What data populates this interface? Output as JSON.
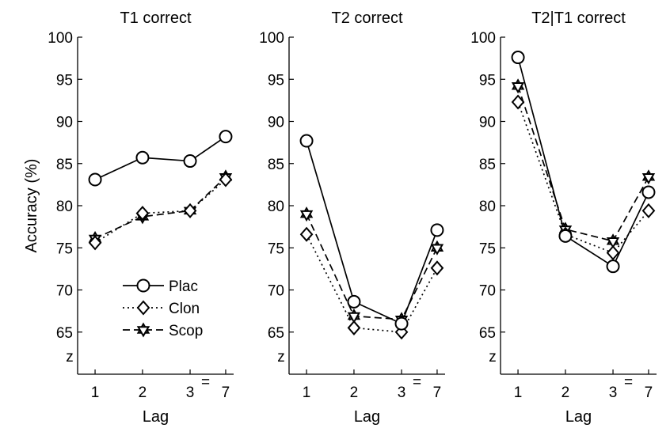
{
  "chart_data": [
    {
      "type": "line",
      "title": "T1 correct",
      "xlabel": "Lag",
      "ylabel": "Accuracy (%)",
      "categories": [
        "1",
        "2",
        "3",
        "7"
      ],
      "ylim": [
        60,
        100
      ],
      "yticks": [
        65,
        70,
        75,
        80,
        85,
        90,
        95,
        100
      ],
      "legend": {
        "placement": "bottom-right",
        "entries": [
          "Plac",
          "Clon",
          "Scop"
        ]
      },
      "series": [
        {
          "name": "Plac",
          "values": [
            83.1,
            85.7,
            85.3,
            88.2
          ]
        },
        {
          "name": "Clon",
          "values": [
            75.6,
            79.1,
            79.4,
            83.1
          ]
        },
        {
          "name": "Scop",
          "values": [
            76.1,
            78.7,
            79.4,
            83.4
          ]
        }
      ]
    },
    {
      "type": "line",
      "title": "T2 correct",
      "xlabel": "Lag",
      "ylabel": "",
      "categories": [
        "1",
        "2",
        "3",
        "7"
      ],
      "ylim": [
        60,
        100
      ],
      "yticks": [
        65,
        70,
        75,
        80,
        85,
        90,
        95,
        100
      ],
      "series": [
        {
          "name": "Plac",
          "values": [
            87.7,
            68.6,
            66.0,
            77.1
          ]
        },
        {
          "name": "Clon",
          "values": [
            76.6,
            65.5,
            65.0,
            72.6
          ]
        },
        {
          "name": "Scop",
          "values": [
            79.0,
            66.9,
            66.5,
            75.0
          ]
        }
      ]
    },
    {
      "type": "line",
      "title": "T2|T1 correct",
      "xlabel": "Lag",
      "ylabel": "",
      "categories": [
        "1",
        "2",
        "3",
        "7"
      ],
      "ylim": [
        60,
        100
      ],
      "yticks": [
        65,
        70,
        75,
        80,
        85,
        90,
        95,
        100
      ],
      "series": [
        {
          "name": "Plac",
          "values": [
            97.6,
            76.4,
            72.8,
            81.6
          ]
        },
        {
          "name": "Clon",
          "values": [
            92.3,
            76.6,
            74.4,
            79.4
          ]
        },
        {
          "name": "Scop",
          "values": [
            94.2,
            77.2,
            75.8,
            83.4
          ]
        }
      ]
    }
  ],
  "axis_break": {
    "y_mark": "z",
    "x_mark": "="
  },
  "styles": {
    "Plac": {
      "dash": "solid",
      "marker": "circle-icon"
    },
    "Clon": {
      "dash": "dotted",
      "marker": "diamond-icon"
    },
    "Scop": {
      "dash": "dashed",
      "marker": "hexagram-icon"
    },
    "line_color": "#000000",
    "marker_fill": "#ffffff"
  }
}
